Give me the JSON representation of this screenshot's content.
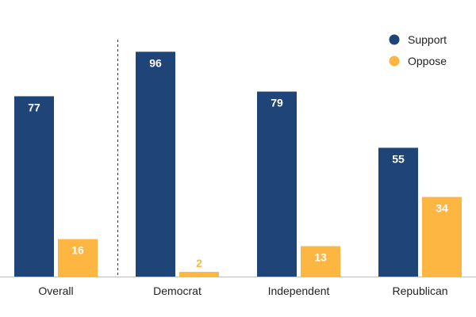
{
  "chart_data": {
    "type": "bar",
    "title": "",
    "xlabel": "",
    "ylabel": "",
    "ylim": [
      0,
      100
    ],
    "grid": false,
    "legend_position": "top-right",
    "categories": [
      "Overall",
      "Democrat",
      "Independent",
      "Republican"
    ],
    "series": [
      {
        "name": "Support",
        "color": "#1f4478",
        "label_color": "#ffffff",
        "values": [
          77,
          96,
          79,
          55
        ]
      },
      {
        "name": "Oppose",
        "color": "#fdb642",
        "label_color": "#ffffff",
        "values": [
          16,
          2,
          13,
          34
        ]
      }
    ],
    "separator_after_category": "Overall"
  }
}
